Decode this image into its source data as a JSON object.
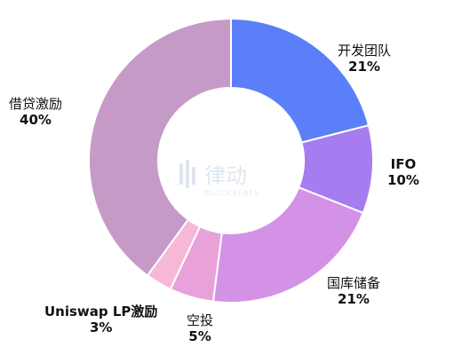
{
  "chart_data": {
    "type": "pie",
    "donut": true,
    "slices": [
      {
        "label": "开发团队",
        "value": 21,
        "pct_text": "21%",
        "color": "#5b7ff8"
      },
      {
        "label": "IFO",
        "value": 10,
        "pct_text": "10%",
        "color": "#a77cf0"
      },
      {
        "label": "国库储备",
        "value": 21,
        "pct_text": "21%",
        "color": "#d492e6"
      },
      {
        "label": "空投",
        "value": 5,
        "pct_text": "5%",
        "color": "#e9a1da"
      },
      {
        "label": "Uniswap LP激励",
        "value": 3,
        "pct_text": "3%",
        "color": "#f7b8d7"
      },
      {
        "label": "借贷激励",
        "value": 40,
        "pct_text": "40%",
        "color": "#c69ac6"
      }
    ]
  },
  "watermark": {
    "brand": "律动",
    "sub": "BLOCKBEATS"
  }
}
